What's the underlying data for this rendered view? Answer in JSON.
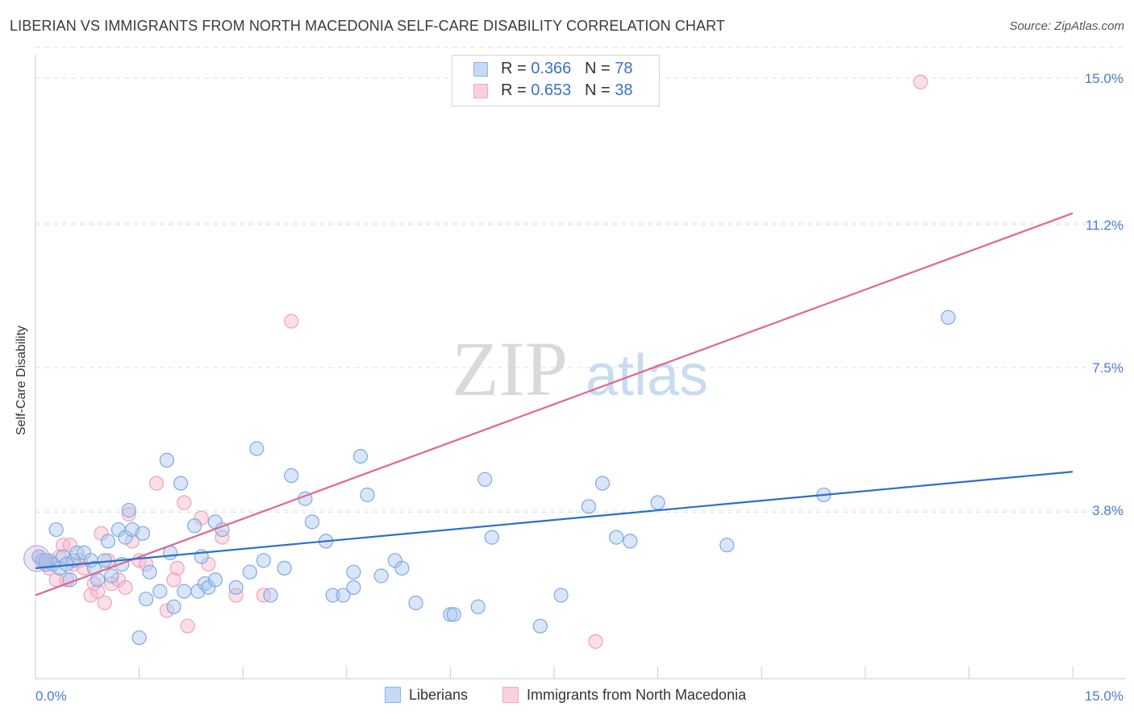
{
  "title": "LIBERIAN VS IMMIGRANTS FROM NORTH MACEDONIA SELF-CARE DISABILITY CORRELATION CHART",
  "source": "Source: ZipAtlas.com",
  "watermark": {
    "zip": "ZIP",
    "atlas": "atlas"
  },
  "colors": {
    "blue": "#8ab4ea",
    "blue_line": "#2a6fcf",
    "pink": "#f4a8c0",
    "pink_line": "#e0678e",
    "axis_text": "#4a7cc8"
  },
  "legend": {
    "series": [
      {
        "name": "Liberians",
        "r_label": "R = ",
        "r_value": "0.366",
        "n_label": "N = ",
        "n_value": "78"
      },
      {
        "name": "Immigrants from North Macedonia",
        "r_label": "R = ",
        "r_value": "0.653",
        "n_label": "N = ",
        "n_value": "38"
      }
    ]
  },
  "chart_data": {
    "type": "scatter",
    "title": "LIBERIAN VS IMMIGRANTS FROM NORTH MACEDONIA SELF-CARE DISABILITY CORRELATION CHART",
    "xlabel": "",
    "ylabel": "Self-Care Disability",
    "xlim": [
      0,
      15
    ],
    "ylim": [
      0,
      15
    ],
    "x_tick_labels": [
      "0.0%",
      "15.0%"
    ],
    "y_ticks": [
      3.8,
      7.5,
      11.2,
      15.0
    ],
    "y_tick_labels": [
      "3.8%",
      "7.5%",
      "11.2%",
      "15.0%"
    ],
    "series": [
      {
        "name": "Liberians",
        "trend": {
          "x": [
            0,
            15
          ],
          "y": [
            2.3,
            4.8
          ]
        },
        "points": [
          [
            0.05,
            2.6
          ],
          [
            0.1,
            2.5
          ],
          [
            0.15,
            2.4
          ],
          [
            0.2,
            2.5
          ],
          [
            0.25,
            2.4
          ],
          [
            0.3,
            3.3
          ],
          [
            0.35,
            2.3
          ],
          [
            0.4,
            2.6
          ],
          [
            0.5,
            2.0
          ],
          [
            0.55,
            2.5
          ],
          [
            0.6,
            2.7
          ],
          [
            0.7,
            2.7
          ],
          [
            0.8,
            2.5
          ],
          [
            0.85,
            2.3
          ],
          [
            0.9,
            2.0
          ],
          [
            1.0,
            2.5
          ],
          [
            1.05,
            3.0
          ],
          [
            1.1,
            2.1
          ],
          [
            1.2,
            3.3
          ],
          [
            1.25,
            2.4
          ],
          [
            1.3,
            3.1
          ],
          [
            1.35,
            3.8
          ],
          [
            1.4,
            3.3
          ],
          [
            1.5,
            0.5
          ],
          [
            1.55,
            3.2
          ],
          [
            1.6,
            1.5
          ],
          [
            1.65,
            2.2
          ],
          [
            1.8,
            1.7
          ],
          [
            1.9,
            5.1
          ],
          [
            1.95,
            2.7
          ],
          [
            2.0,
            1.3
          ],
          [
            2.1,
            4.5
          ],
          [
            2.15,
            1.7
          ],
          [
            2.3,
            3.4
          ],
          [
            2.35,
            1.7
          ],
          [
            2.4,
            2.6
          ],
          [
            2.45,
            1.9
          ],
          [
            2.5,
            1.8
          ],
          [
            2.6,
            2.0
          ],
          [
            2.6,
            3.5
          ],
          [
            2.7,
            3.3
          ],
          [
            2.9,
            1.8
          ],
          [
            3.1,
            2.2
          ],
          [
            3.2,
            5.4
          ],
          [
            3.3,
            2.5
          ],
          [
            3.4,
            1.6
          ],
          [
            3.6,
            2.3
          ],
          [
            3.7,
            4.7
          ],
          [
            3.9,
            4.1
          ],
          [
            4.0,
            3.5
          ],
          [
            4.2,
            3.0
          ],
          [
            4.3,
            1.6
          ],
          [
            4.45,
            1.6
          ],
          [
            4.6,
            2.2
          ],
          [
            4.6,
            1.8
          ],
          [
            4.7,
            5.2
          ],
          [
            4.8,
            4.2
          ],
          [
            5.0,
            2.1
          ],
          [
            5.2,
            2.5
          ],
          [
            5.3,
            2.3
          ],
          [
            5.5,
            1.4
          ],
          [
            6.0,
            1.1
          ],
          [
            6.05,
            1.1
          ],
          [
            6.4,
            1.3
          ],
          [
            6.5,
            4.6
          ],
          [
            6.6,
            3.1
          ],
          [
            7.3,
            0.8
          ],
          [
            7.6,
            1.6
          ],
          [
            8.0,
            3.9
          ],
          [
            8.2,
            4.5
          ],
          [
            8.4,
            3.1
          ],
          [
            8.6,
            3.0
          ],
          [
            9.0,
            4.0
          ],
          [
            10.0,
            2.9
          ],
          [
            11.4,
            4.2
          ],
          [
            13.2,
            8.8
          ],
          [
            0.15,
            2.5
          ],
          [
            0.45,
            2.4
          ]
        ]
      },
      {
        "name": "Immigrants from North Macedonia",
        "trend": {
          "x": [
            0,
            15
          ],
          "y": [
            1.6,
            11.5
          ]
        },
        "points": [
          [
            0.05,
            2.6
          ],
          [
            0.1,
            2.5
          ],
          [
            0.2,
            2.3
          ],
          [
            0.3,
            2.0
          ],
          [
            0.35,
            2.6
          ],
          [
            0.4,
            2.9
          ],
          [
            0.45,
            2.0
          ],
          [
            0.5,
            2.9
          ],
          [
            0.55,
            2.4
          ],
          [
            0.65,
            2.5
          ],
          [
            0.7,
            2.3
          ],
          [
            0.8,
            1.6
          ],
          [
            0.85,
            1.9
          ],
          [
            0.9,
            1.7
          ],
          [
            0.95,
            3.2
          ],
          [
            1.0,
            1.4
          ],
          [
            1.05,
            2.5
          ],
          [
            1.1,
            1.9
          ],
          [
            1.2,
            2.0
          ],
          [
            1.3,
            1.8
          ],
          [
            1.35,
            3.7
          ],
          [
            1.4,
            3.0
          ],
          [
            1.5,
            2.5
          ],
          [
            1.6,
            2.4
          ],
          [
            1.75,
            4.5
          ],
          [
            1.9,
            1.2
          ],
          [
            2.0,
            2.0
          ],
          [
            2.05,
            2.3
          ],
          [
            2.15,
            4.0
          ],
          [
            2.2,
            0.8
          ],
          [
            2.4,
            3.6
          ],
          [
            2.5,
            2.4
          ],
          [
            2.7,
            3.1
          ],
          [
            2.9,
            1.6
          ],
          [
            3.3,
            1.6
          ],
          [
            3.7,
            8.7
          ],
          [
            12.8,
            14.9
          ],
          [
            8.1,
            0.4
          ]
        ]
      }
    ]
  }
}
